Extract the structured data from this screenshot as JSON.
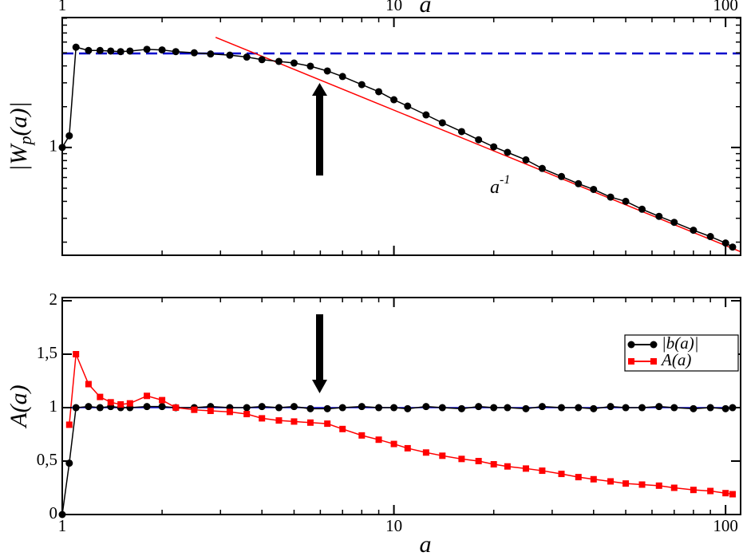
{
  "chart_data": [
    {
      "type": "line",
      "xscale": "log",
      "yscale": "log",
      "xlabel": "a",
      "xlabel_side": "top",
      "ylabel": [
        "|W",
        "p",
        "(a)|"
      ],
      "annotation": [
        "a",
        "-1"
      ],
      "xlim": [
        1,
        111
      ],
      "xticks": [
        1,
        10,
        100
      ],
      "xminor": [
        2,
        3,
        4,
        5,
        6,
        7,
        8,
        9,
        20,
        30,
        40,
        50,
        60,
        70,
        80,
        90
      ],
      "ylim": [
        0.16,
        9.1
      ],
      "yticks": [
        1
      ],
      "yminor": [
        0.2,
        0.3,
        0.4,
        0.5,
        0.6,
        0.7,
        0.8,
        0.9,
        2,
        3,
        4,
        5,
        6,
        7,
        8,
        9
      ],
      "x": [
        1,
        1.05,
        1.1,
        1.2,
        1.3,
        1.4,
        1.5,
        1.6,
        1.8,
        2,
        2.2,
        2.5,
        2.8,
        3.2,
        3.6,
        4,
        4.5,
        5,
        5.6,
        6.3,
        7,
        8,
        9,
        10,
        11,
        12.5,
        14,
        16,
        18,
        20,
        22,
        25,
        28,
        32,
        36,
        40,
        45,
        50,
        56,
        63,
        70,
        80,
        90,
        100,
        105
      ],
      "series": [
        {
          "color": "#000000",
          "marker": "circle",
          "values": [
            1,
            1.22,
            5.5,
            5.2,
            5.2,
            5.15,
            5.1,
            5.15,
            5.3,
            5.25,
            5.1,
            5.0,
            4.9,
            4.8,
            4.65,
            4.45,
            4.32,
            4.2,
            3.98,
            3.67,
            3.34,
            2.91,
            2.58,
            2.25,
            2.02,
            1.74,
            1.52,
            1.31,
            1.14,
            1.01,
            0.92,
            0.81,
            0.7,
            0.61,
            0.54,
            0.49,
            0.43,
            0.4,
            0.35,
            0.31,
            0.28,
            0.245,
            0.22,
            0.197,
            0.184
          ]
        }
      ],
      "fit": {
        "color": "#ff0000",
        "x": [
          2.9,
          111
        ],
        "values": [
          6.5,
          0.17
        ]
      },
      "reference_lines": [
        {
          "value": 4.94,
          "color": "#0000cc",
          "dashed": true
        }
      ]
    },
    {
      "type": "line",
      "xscale": "log",
      "yscale": "linear",
      "xlabel": "a",
      "xlabel_side": "bottom",
      "ylabel": [
        "A(a)"
      ],
      "xlim": [
        1,
        111
      ],
      "xticks": [
        1,
        10,
        100
      ],
      "xminor": [
        2,
        3,
        4,
        5,
        6,
        7,
        8,
        9,
        20,
        30,
        40,
        50,
        60,
        70,
        80,
        90
      ],
      "ylim": [
        0,
        2.03
      ],
      "yticks": [
        0,
        {
          "value": 0.5,
          "label": "0,5"
        },
        1,
        {
          "value": 1.5,
          "label": "1,5"
        },
        2
      ],
      "legend": "upper right",
      "x": [
        1,
        1.05,
        1.1,
        1.2,
        1.3,
        1.4,
        1.5,
        1.6,
        1.8,
        2,
        2.2,
        2.5,
        2.8,
        3.2,
        3.6,
        4,
        4.5,
        5,
        5.6,
        6.3,
        7,
        8,
        9,
        10,
        11,
        12.5,
        14,
        16,
        18,
        20,
        22,
        25,
        28,
        32,
        36,
        40,
        45,
        50,
        56,
        63,
        70,
        80,
        90,
        100,
        105
      ],
      "series": [
        {
          "name": "|b(a)|",
          "color": "#000000",
          "marker": "circle",
          "values": [
            0,
            0.48,
            1.0,
            1.01,
            1.0,
            1.01,
            1.0,
            1.0,
            1.01,
            1.01,
            1.0,
            1.0,
            1.01,
            1.0,
            1.0,
            1.01,
            1.0,
            1.01,
            0.99,
            0.99,
            1.0,
            1.01,
            1.0,
            1.0,
            0.99,
            1.01,
            1.0,
            0.99,
            1.01,
            1.0,
            1.0,
            0.99,
            1.01,
            1.0,
            1.0,
            0.99,
            1.01,
            1.0,
            1.0,
            1.01,
            1.0,
            0.99,
            1.0,
            0.99,
            1.0
          ]
        },
        {
          "name": "A(a)",
          "color": "#ff0000",
          "marker": "square",
          "values": [
            null,
            0.84,
            1.5,
            1.22,
            1.1,
            1.05,
            1.03,
            1.04,
            1.11,
            1.07,
            1.0,
            0.98,
            0.97,
            0.96,
            0.94,
            0.9,
            0.88,
            0.87,
            0.86,
            0.85,
            0.8,
            0.74,
            0.7,
            0.66,
            0.62,
            0.58,
            0.55,
            0.52,
            0.5,
            0.47,
            0.45,
            0.43,
            0.41,
            0.38,
            0.35,
            0.33,
            0.31,
            0.29,
            0.28,
            0.27,
            0.25,
            0.23,
            0.22,
            0.2,
            0.19
          ]
        }
      ],
      "reference_lines": [
        {
          "value": 1,
          "color": "#0000cc",
          "dashed": false
        }
      ]
    }
  ]
}
